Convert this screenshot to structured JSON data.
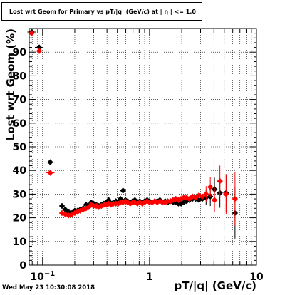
{
  "title": "Lost wrt Geom for Primary vs pT/|q| (GeV/c) at | η | <= 1.0",
  "footer_timestamp": "Wed May 23 10:30:08 2018",
  "chart_data": {
    "type": "scatter",
    "title": "Lost wrt Geom for Primary vs pT/|q| (GeV/c) at | η | <= 1.0",
    "xlabel": "pT/|q| (GeV/c)",
    "ylabel": "Lost wrt Geom (%)",
    "xscale": "log",
    "xlim": [
      0.075,
      10
    ],
    "ylim": [
      0,
      100
    ],
    "x_tick_labels": [
      {
        "value": 0.1,
        "base": "10",
        "exp": "−1"
      },
      {
        "value": 1,
        "label": "1"
      },
      {
        "value": 10,
        "label": "10"
      }
    ],
    "y_ticks": [
      0,
      10,
      20,
      30,
      40,
      50,
      60,
      70,
      80,
      90
    ],
    "grid": true,
    "series": [
      {
        "color": "#000000",
        "points": [
          {
            "x": 0.079,
            "y": 98.5
          },
          {
            "x": 0.093,
            "y": 92.0
          },
          {
            "x": 0.118,
            "y": 43.5
          },
          {
            "x": 0.152,
            "y": 25.0
          },
          {
            "x": 0.163,
            "y": 23.5
          },
          {
            "x": 0.175,
            "y": 22.5
          },
          {
            "x": 0.188,
            "y": 22.0
          },
          {
            "x": 0.2,
            "y": 23.0
          },
          {
            "x": 0.212,
            "y": 23.0
          },
          {
            "x": 0.225,
            "y": 23.5
          },
          {
            "x": 0.24,
            "y": 24.0
          },
          {
            "x": 0.255,
            "y": 25.5
          },
          {
            "x": 0.27,
            "y": 25.0
          },
          {
            "x": 0.285,
            "y": 26.5
          },
          {
            "x": 0.3,
            "y": 26.0
          },
          {
            "x": 0.318,
            "y": 25.5
          },
          {
            "x": 0.336,
            "y": 25.0
          },
          {
            "x": 0.355,
            "y": 25.5
          },
          {
            "x": 0.375,
            "y": 26.0
          },
          {
            "x": 0.395,
            "y": 26.5
          },
          {
            "x": 0.415,
            "y": 27.5
          },
          {
            "x": 0.437,
            "y": 26.0
          },
          {
            "x": 0.46,
            "y": 26.5
          },
          {
            "x": 0.485,
            "y": 27.0
          },
          {
            "x": 0.51,
            "y": 26.5
          },
          {
            "x": 0.535,
            "y": 28.0
          },
          {
            "x": 0.565,
            "y": 31.5
          },
          {
            "x": 0.595,
            "y": 27.5
          },
          {
            "x": 0.625,
            "y": 27.0
          },
          {
            "x": 0.66,
            "y": 26.5
          },
          {
            "x": 0.695,
            "y": 27.0
          },
          {
            "x": 0.73,
            "y": 27.5
          },
          {
            "x": 0.77,
            "y": 26.5
          },
          {
            "x": 0.81,
            "y": 27.0
          },
          {
            "x": 0.855,
            "y": 26.5
          },
          {
            "x": 0.9,
            "y": 27.0
          },
          {
            "x": 0.95,
            "y": 27.5
          },
          {
            "x": 1.0,
            "y": 27.0
          },
          {
            "x": 1.06,
            "y": 26.5
          },
          {
            "x": 1.12,
            "y": 27.0
          },
          {
            "x": 1.18,
            "y": 27.0
          },
          {
            "x": 1.25,
            "y": 27.5
          },
          {
            "x": 1.32,
            "y": 26.5
          },
          {
            "x": 1.4,
            "y": 27.0
          },
          {
            "x": 1.48,
            "y": 26.5
          },
          {
            "x": 1.57,
            "y": 27.0
          },
          {
            "x": 1.66,
            "y": 26.5
          },
          {
            "x": 1.76,
            "y": 26.5
          },
          {
            "x": 1.86,
            "y": 26.0
          },
          {
            "x": 1.97,
            "y": 26.0
          },
          {
            "x": 2.09,
            "y": 26.5
          },
          {
            "x": 2.22,
            "y": 27.0
          },
          {
            "x": 2.36,
            "y": 27.5
          },
          {
            "x": 2.52,
            "y": 28.0
          },
          {
            "x": 2.7,
            "y": 28.0
          },
          {
            "x": 2.9,
            "y": 27.5
          },
          {
            "x": 3.12,
            "y": 28.0
          },
          {
            "x": 3.38,
            "y": 28.5
          },
          {
            "x": 3.7,
            "y": 29.0
          },
          {
            "x": 4.05,
            "y": 32.0
          },
          {
            "x": 4.55,
            "y": 30.5
          },
          {
            "x": 5.2,
            "y": 30.5
          },
          {
            "x": 6.3,
            "y": 22.0
          }
        ]
      },
      {
        "color": "#ff0000",
        "points": [
          {
            "x": 0.079,
            "y": 98.0
          },
          {
            "x": 0.093,
            "y": 90.5
          },
          {
            "x": 0.118,
            "y": 39.0
          },
          {
            "x": 0.152,
            "y": 22.0
          },
          {
            "x": 0.163,
            "y": 21.5
          },
          {
            "x": 0.175,
            "y": 21.0
          },
          {
            "x": 0.188,
            "y": 21.5
          },
          {
            "x": 0.2,
            "y": 22.0
          },
          {
            "x": 0.212,
            "y": 22.5
          },
          {
            "x": 0.225,
            "y": 23.0
          },
          {
            "x": 0.24,
            "y": 23.5
          },
          {
            "x": 0.255,
            "y": 24.0
          },
          {
            "x": 0.27,
            "y": 24.5
          },
          {
            "x": 0.285,
            "y": 25.5
          },
          {
            "x": 0.3,
            "y": 25.0
          },
          {
            "x": 0.318,
            "y": 25.0
          },
          {
            "x": 0.336,
            "y": 24.5
          },
          {
            "x": 0.355,
            "y": 25.0
          },
          {
            "x": 0.375,
            "y": 25.5
          },
          {
            "x": 0.395,
            "y": 25.5
          },
          {
            "x": 0.415,
            "y": 26.0
          },
          {
            "x": 0.437,
            "y": 25.5
          },
          {
            "x": 0.46,
            "y": 26.0
          },
          {
            "x": 0.485,
            "y": 26.0
          },
          {
            "x": 0.51,
            "y": 26.0
          },
          {
            "x": 0.535,
            "y": 26.5
          },
          {
            "x": 0.565,
            "y": 26.5
          },
          {
            "x": 0.595,
            "y": 27.0
          },
          {
            "x": 0.625,
            "y": 26.5
          },
          {
            "x": 0.66,
            "y": 26.0
          },
          {
            "x": 0.695,
            "y": 26.5
          },
          {
            "x": 0.73,
            "y": 26.5
          },
          {
            "x": 0.77,
            "y": 26.0
          },
          {
            "x": 0.81,
            "y": 26.5
          },
          {
            "x": 0.855,
            "y": 26.0
          },
          {
            "x": 0.9,
            "y": 26.5
          },
          {
            "x": 0.95,
            "y": 27.0
          },
          {
            "x": 1.0,
            "y": 26.5
          },
          {
            "x": 1.06,
            "y": 26.5
          },
          {
            "x": 1.12,
            "y": 27.0
          },
          {
            "x": 1.18,
            "y": 26.5
          },
          {
            "x": 1.25,
            "y": 27.0
          },
          {
            "x": 1.32,
            "y": 26.5
          },
          {
            "x": 1.4,
            "y": 26.5
          },
          {
            "x": 1.48,
            "y": 27.0
          },
          {
            "x": 1.57,
            "y": 27.0
          },
          {
            "x": 1.66,
            "y": 27.5
          },
          {
            "x": 1.76,
            "y": 28.0
          },
          {
            "x": 1.86,
            "y": 27.5
          },
          {
            "x": 1.97,
            "y": 28.0
          },
          {
            "x": 2.09,
            "y": 28.5
          },
          {
            "x": 2.22,
            "y": 28.5
          },
          {
            "x": 2.36,
            "y": 28.0
          },
          {
            "x": 2.52,
            "y": 29.0
          },
          {
            "x": 2.7,
            "y": 28.5
          },
          {
            "x": 2.9,
            "y": 29.5
          },
          {
            "x": 3.12,
            "y": 29.0
          },
          {
            "x": 3.38,
            "y": 30.0
          },
          {
            "x": 3.7,
            "y": 33.0
          },
          {
            "x": 4.05,
            "y": 27.5
          },
          {
            "x": 4.55,
            "y": 35.5
          },
          {
            "x": 5.2,
            "y": 30.0
          },
          {
            "x": 6.3,
            "y": 28.0
          }
        ]
      }
    ]
  }
}
